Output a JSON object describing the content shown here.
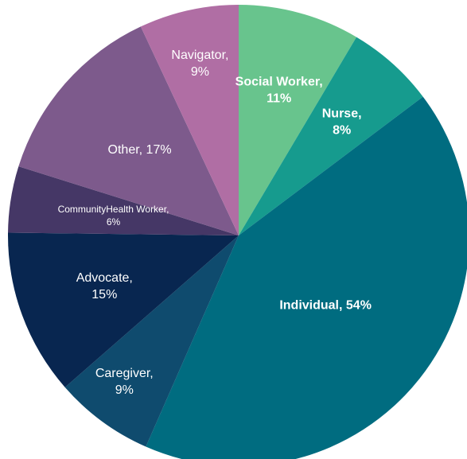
{
  "chart_data": {
    "type": "pie",
    "slices": [
      {
        "label": "Social Worker,",
        "value_label": "11%",
        "value": 11,
        "color": "#68c48d",
        "bold": true
      },
      {
        "label": "Nurse,",
        "value_label": "8%",
        "value": 8,
        "color": "#169b8e",
        "bold": true
      },
      {
        "label": "Individual, 54%",
        "value_label": "",
        "value": 54,
        "color": "#006c80",
        "bold": true
      },
      {
        "label": "Caregiver,",
        "value_label": "9%",
        "value": 9,
        "color": "#0f4b6e",
        "bold": false
      },
      {
        "label": "Advocate,",
        "value_label": "15%",
        "value": 15,
        "color": "#082650",
        "bold": false
      },
      {
        "label": "CommunityHealth Worker,",
        "value_label": "6%",
        "value": 6,
        "color": "#453766",
        "bold": false
      },
      {
        "label": "Other, 17%",
        "value_label": "",
        "value": 17,
        "color": "#7d5a8c",
        "bold": false
      },
      {
        "label": "Navigator,",
        "value_label": "9%",
        "value": 9,
        "color": "#b06ea4",
        "bold": false
      }
    ]
  }
}
